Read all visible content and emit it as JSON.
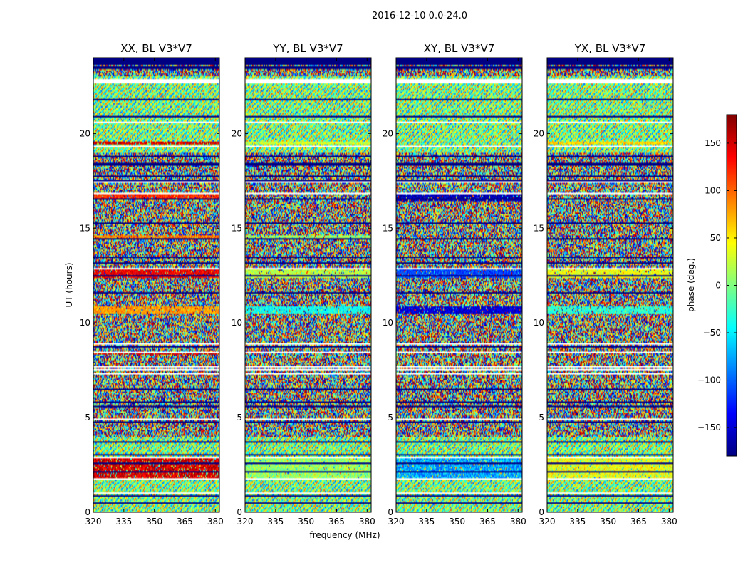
{
  "chart_data": {
    "type": "heatmap",
    "suptitle": "2016-12-10 0.0-24.0",
    "xlabel": "frequency (MHz)",
    "ylabel": "UT (hours)",
    "xlim": [
      320,
      382
    ],
    "ylim": [
      0,
      24
    ],
    "xticks": [
      320,
      335,
      350,
      365,
      380
    ],
    "yticks": [
      0,
      5,
      10,
      15,
      20
    ],
    "panels": [
      {
        "title": "XX, BL V3*V7",
        "bands": [
          {
            "t0": 1.8,
            "t1": 2.9,
            "phase": 150,
            "spread": 60
          },
          {
            "t0": 8.3,
            "t1": 8.5,
            "phase": 150,
            "spread": 40
          },
          {
            "t0": 10.5,
            "t1": 10.9,
            "phase": 80,
            "spread": 40
          },
          {
            "t0": 12.4,
            "t1": 12.8,
            "phase": 140,
            "spread": 40
          },
          {
            "t0": 14.4,
            "t1": 14.6,
            "phase": 90,
            "spread": 50
          },
          {
            "t0": 16.6,
            "t1": 16.8,
            "phase": 120,
            "spread": 40
          },
          {
            "t0": 19.4,
            "t1": 19.6,
            "phase": 150,
            "spread": 40
          }
        ]
      },
      {
        "title": "YY, BL V3*V7",
        "bands": [
          {
            "t0": 1.8,
            "t1": 2.9,
            "phase": 10,
            "spread": 60
          },
          {
            "t0": 10.5,
            "t1": 10.9,
            "phase": -40,
            "spread": 40
          },
          {
            "t0": 12.4,
            "t1": 12.8,
            "phase": 20,
            "spread": 40
          },
          {
            "t0": 14.4,
            "t1": 14.6,
            "phase": 10,
            "spread": 50
          },
          {
            "t0": 19.4,
            "t1": 19.6,
            "phase": 30,
            "spread": 40
          }
        ]
      },
      {
        "title": "XY, BL V3*V7",
        "bands": [
          {
            "t0": 1.8,
            "t1": 2.9,
            "phase": -80,
            "spread": 60
          },
          {
            "t0": 10.5,
            "t1": 10.9,
            "phase": -150,
            "spread": 40
          },
          {
            "t0": 12.4,
            "t1": 12.8,
            "phase": -110,
            "spread": 40
          },
          {
            "t0": 16.4,
            "t1": 16.8,
            "phase": -160,
            "spread": 40
          }
        ]
      },
      {
        "title": "YX, BL V3*V7",
        "bands": [
          {
            "t0": 1.8,
            "t1": 2.9,
            "phase": 40,
            "spread": 60
          },
          {
            "t0": 10.5,
            "t1": 10.9,
            "phase": -30,
            "spread": 40
          },
          {
            "t0": 12.4,
            "t1": 12.8,
            "phase": 40,
            "spread": 40
          },
          {
            "t0": 19.4,
            "t1": 19.6,
            "phase": 60,
            "spread": 40
          }
        ]
      }
    ],
    "colorbar": {
      "label": "phase (deg.)",
      "range": [
        -180,
        180
      ],
      "ticks": [
        -150,
        -100,
        -50,
        0,
        50,
        100,
        150
      ],
      "colormap": "jet"
    }
  }
}
